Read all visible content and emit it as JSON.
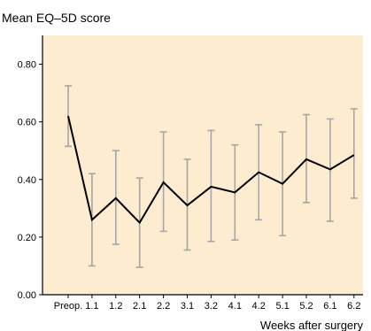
{
  "chart_data": {
    "type": "line",
    "title": "Mean EQ–5D score",
    "xlabel": "Weeks after surgery",
    "ylabel": "",
    "ylim": [
      0,
      0.9
    ],
    "yticks": [
      "0.00",
      "0.20",
      "0.40",
      "0.60",
      "0.80"
    ],
    "ytick_values": [
      0,
      0.2,
      0.4,
      0.6,
      0.8
    ],
    "categories": [
      "Preop.",
      "1.1",
      "1.2",
      "2.1",
      "2.2",
      "3.1",
      "3.2",
      "4.1",
      "4.2",
      "5.1",
      "5.2",
      "6.1",
      "6.2"
    ],
    "series": [
      {
        "values": [
          0.62,
          0.26,
          0.335,
          0.25,
          0.39,
          0.31,
          0.375,
          0.355,
          0.425,
          0.385,
          0.47,
          0.435,
          0.485
        ],
        "lower": [
          0.515,
          0.1,
          0.175,
          0.095,
          0.22,
          0.155,
          0.185,
          0.19,
          0.26,
          0.205,
          0.32,
          0.255,
          0.335
        ],
        "upper": [
          0.725,
          0.42,
          0.5,
          0.405,
          0.565,
          0.47,
          0.57,
          0.52,
          0.59,
          0.565,
          0.625,
          0.61,
          0.645
        ]
      }
    ],
    "grid": false,
    "legend": "none",
    "colors": {
      "background": "#fdecd0",
      "line": "#000000",
      "error_bar": "#a6a6a6",
      "axis": "#000000"
    }
  }
}
